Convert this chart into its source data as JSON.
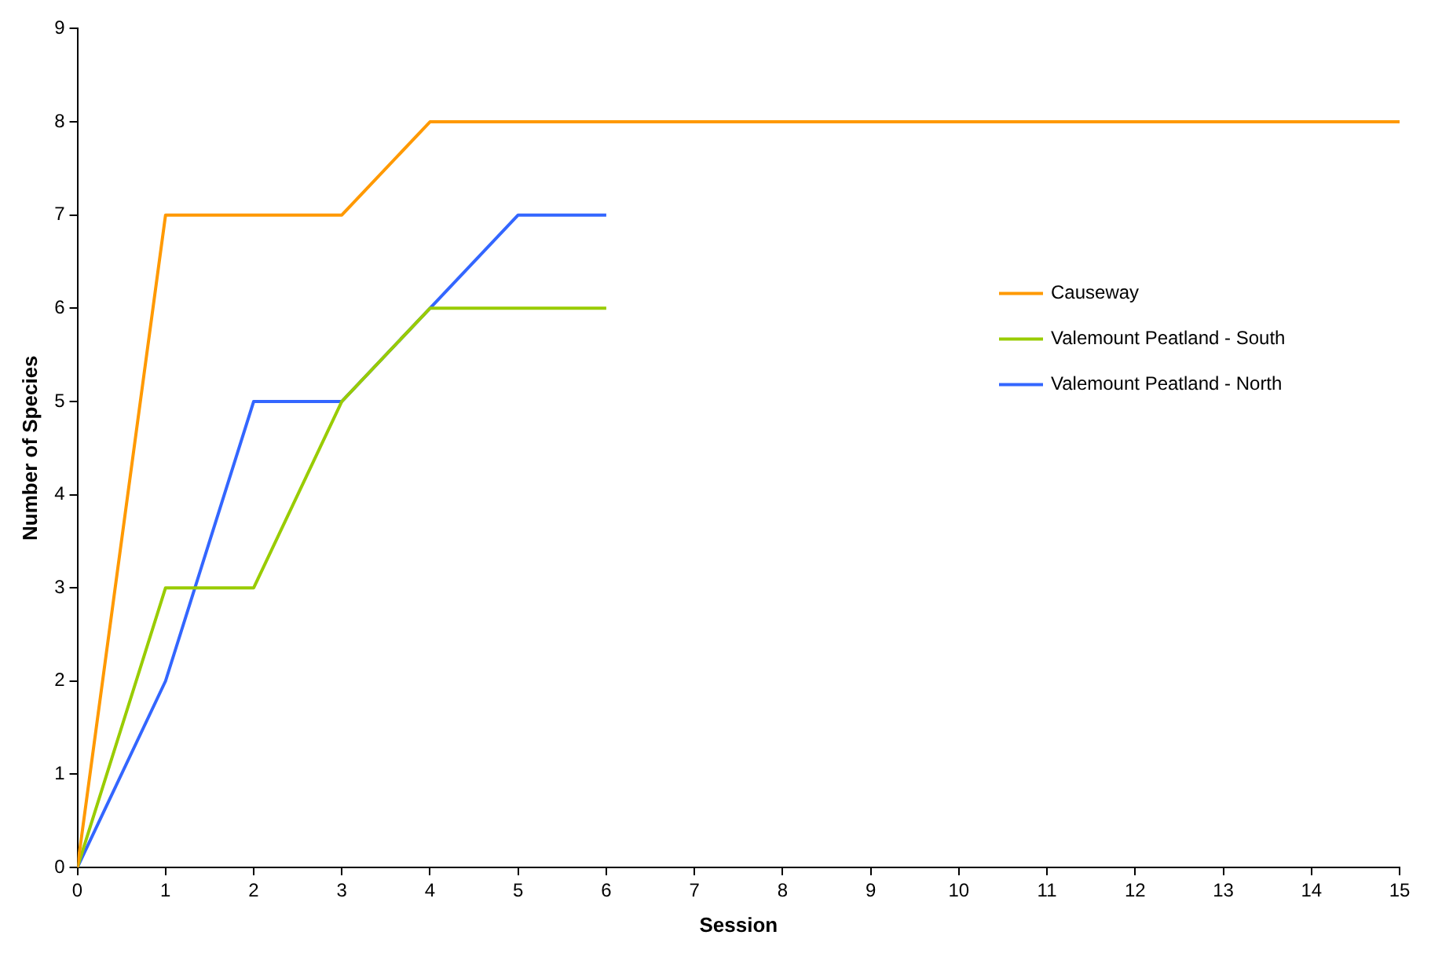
{
  "chart_data": {
    "type": "line",
    "xlabel": "Session",
    "ylabel": "Number of Species",
    "xlim": [
      0,
      15
    ],
    "xticks": [
      0,
      1,
      2,
      3,
      4,
      5,
      6,
      7,
      8,
      9,
      10,
      11,
      12,
      13,
      14,
      15
    ],
    "ylim": [
      0,
      9
    ],
    "yticks": [
      0,
      1,
      2,
      3,
      4,
      5,
      6,
      7,
      8,
      9
    ],
    "grid": false,
    "legend": "right",
    "marker": "none",
    "series": [
      {
        "name": "Causeway",
        "color": "#ff9900",
        "x": [
          0,
          1,
          2,
          3,
          4,
          5,
          6,
          7,
          8,
          9,
          10,
          11,
          12,
          13,
          14,
          15
        ],
        "values": [
          0,
          7,
          7,
          7,
          8,
          8,
          8,
          8,
          8,
          8,
          8,
          8,
          8,
          8,
          8,
          8
        ]
      },
      {
        "name": "Valemount Peatland - South",
        "color": "#99cc00",
        "x": [
          0,
          1,
          2,
          3,
          4,
          5,
          6
        ],
        "values": [
          0,
          3,
          3,
          5,
          6,
          6,
          6
        ]
      },
      {
        "name": "Valemount Peatland - North",
        "color": "#3366ff",
        "x": [
          0,
          1,
          2,
          3,
          4,
          5,
          6
        ],
        "values": [
          0,
          2,
          5,
          5,
          6,
          7,
          7
        ]
      }
    ]
  }
}
